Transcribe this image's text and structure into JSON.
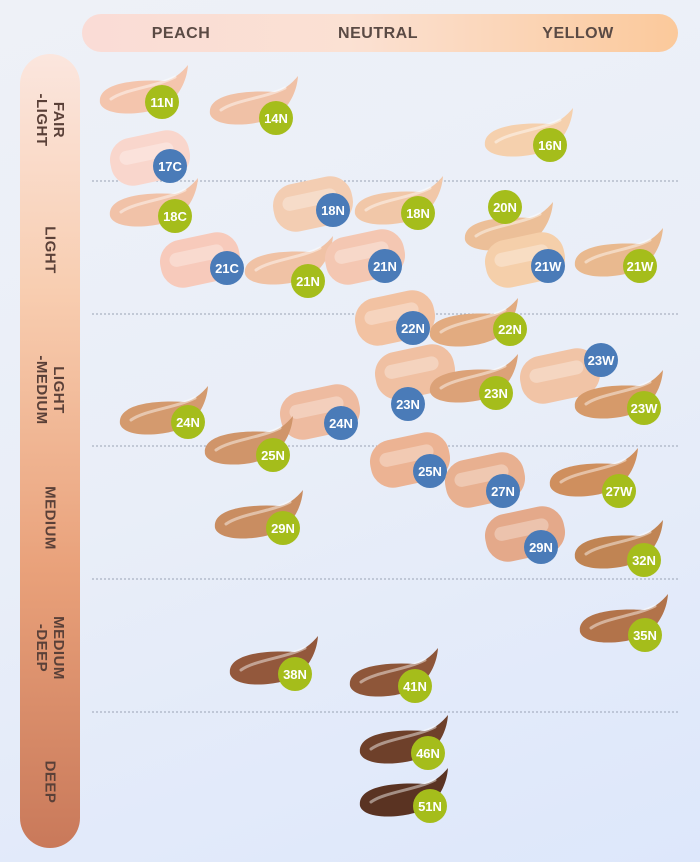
{
  "chart_data": {
    "type": "scatter",
    "title": "",
    "x_axis": {
      "categories": [
        "PEACH",
        "NEUTRAL",
        "YELLOW"
      ],
      "position": "top"
    },
    "y_axis": {
      "categories": [
        "FAIR\n-LIGHT",
        "LIGHT",
        "LIGHT\n-MEDIUM",
        "MEDIUM",
        "MEDIUM\n-DEEP",
        "DEEP"
      ],
      "position": "left"
    },
    "grid": true,
    "series": [
      {
        "values": [
          {
            "label": "11N",
            "undertone": "PEACH",
            "depth": "FAIR\n-LIGHT",
            "swatch": "#f4c5ad",
            "badge": "#a5bd1b"
          },
          {
            "label": "14N",
            "undertone": "PEACH",
            "depth": "FAIR\n-LIGHT",
            "swatch": "#f0c1a6",
            "badge": "#a5bd1b"
          },
          {
            "label": "16N",
            "undertone": "YELLOW",
            "depth": "FAIR\n-LIGHT",
            "swatch": "#f5d0ad",
            "badge": "#a5bd1b"
          },
          {
            "label": "17C",
            "undertone": "PEACH",
            "depth": "FAIR\n-LIGHT",
            "swatch": "#f9d6cc",
            "badge": "#4a7bb8"
          },
          {
            "label": "18C",
            "undertone": "PEACH",
            "depth": "LIGHT",
            "swatch": "#f1c2a8",
            "badge": "#a5bd1b"
          },
          {
            "label": "18N",
            "undertone": "NEUTRAL",
            "depth": "LIGHT",
            "swatch": "#f3cdb2",
            "badge": "#4a7bb8"
          },
          {
            "label": "18N",
            "undertone": "NEUTRAL",
            "depth": "LIGHT",
            "swatch": "#f1c7a8",
            "badge": "#a5bd1b"
          },
          {
            "label": "20N",
            "undertone": "YELLOW",
            "depth": "LIGHT",
            "swatch": "#ecbf98",
            "badge": "#a5bd1b"
          },
          {
            "label": "21C",
            "undertone": "PEACH",
            "depth": "LIGHT",
            "swatch": "#f7cabb",
            "badge": "#4a7bb8"
          },
          {
            "label": "21N",
            "undertone": "PEACH",
            "depth": "LIGHT",
            "swatch": "#f0c2a5",
            "badge": "#a5bd1b"
          },
          {
            "label": "21N",
            "undertone": "NEUTRAL",
            "depth": "LIGHT",
            "swatch": "#f4c7b2",
            "badge": "#4a7bb8"
          },
          {
            "label": "21W",
            "undertone": "YELLOW",
            "depth": "LIGHT",
            "swatch": "#f5cfaa",
            "badge": "#4a7bb8"
          },
          {
            "label": "21W",
            "undertone": "YELLOW",
            "depth": "LIGHT",
            "swatch": "#e9b98f",
            "badge": "#a5bd1b"
          },
          {
            "label": "22N",
            "undertone": "NEUTRAL",
            "depth": "LIGHT\n-MEDIUM",
            "swatch": "#f2c2a2",
            "badge": "#4a7bb8"
          },
          {
            "label": "22N",
            "undertone": "NEUTRAL",
            "depth": "LIGHT\n-MEDIUM",
            "swatch": "#e2ab80",
            "badge": "#a5bd1b"
          },
          {
            "label": "23N",
            "undertone": "NEUTRAL",
            "depth": "LIGHT\n-MEDIUM",
            "swatch": "#f0c0a2",
            "badge": "#4a7bb8"
          },
          {
            "label": "23N",
            "undertone": "NEUTRAL",
            "depth": "LIGHT\n-MEDIUM",
            "swatch": "#dca278",
            "badge": "#a5bd1b"
          },
          {
            "label": "23W",
            "undertone": "YELLOW",
            "depth": "LIGHT\n-MEDIUM",
            "swatch": "#f1c4a6",
            "badge": "#4a7bb8"
          },
          {
            "label": "23W",
            "undertone": "YELLOW",
            "depth": "LIGHT\n-MEDIUM",
            "swatch": "#d69a6a",
            "badge": "#a5bd1b"
          },
          {
            "label": "24N",
            "undertone": "PEACH",
            "depth": "LIGHT\n-MEDIUM",
            "swatch": "#d49a6e",
            "badge": "#a5bd1b"
          },
          {
            "label": "24N",
            "undertone": "NEUTRAL",
            "depth": "LIGHT\n-MEDIUM",
            "swatch": "#eebba0",
            "badge": "#4a7bb8"
          },
          {
            "label": "25N",
            "undertone": "PEACH",
            "depth": "MEDIUM",
            "swatch": "#d0956a",
            "badge": "#a5bd1b"
          },
          {
            "label": "25N",
            "undertone": "NEUTRAL",
            "depth": "MEDIUM",
            "swatch": "#ecb393",
            "badge": "#4a7bb8"
          },
          {
            "label": "27N",
            "undertone": "NEUTRAL",
            "depth": "MEDIUM",
            "swatch": "#e8b090",
            "badge": "#4a7bb8"
          },
          {
            "label": "27W",
            "undertone": "YELLOW",
            "depth": "MEDIUM",
            "swatch": "#cf8f5e",
            "badge": "#a5bd1b"
          },
          {
            "label": "29N",
            "undertone": "PEACH",
            "depth": "MEDIUM",
            "swatch": "#c98d61",
            "badge": "#a5bd1b"
          },
          {
            "label": "29N",
            "undertone": "NEUTRAL",
            "depth": "MEDIUM",
            "swatch": "#e4a98a",
            "badge": "#4a7bb8"
          },
          {
            "label": "32N",
            "undertone": "YELLOW",
            "depth": "MEDIUM",
            "swatch": "#c08453",
            "badge": "#a5bd1b"
          },
          {
            "label": "35N",
            "undertone": "YELLOW",
            "depth": "MEDIUM\n-DEEP",
            "swatch": "#b2734a",
            "badge": "#a5bd1b"
          },
          {
            "label": "38N",
            "undertone": "PEACH",
            "depth": "MEDIUM\n-DEEP",
            "swatch": "#93583c",
            "badge": "#a5bd1b"
          },
          {
            "label": "41N",
            "undertone": "NEUTRAL",
            "depth": "MEDIUM\n-DEEP",
            "swatch": "#8e5639",
            "badge": "#a5bd1b"
          },
          {
            "label": "46N",
            "undertone": "NEUTRAL",
            "depth": "DEEP",
            "swatch": "#6e402a",
            "badge": "#a5bd1b"
          },
          {
            "label": "51N",
            "undertone": "NEUTRAL",
            "depth": "DEEP",
            "swatch": "#5a3322",
            "badge": "#a5bd1b"
          }
        ]
      }
    ],
    "legend": "none"
  }
}
